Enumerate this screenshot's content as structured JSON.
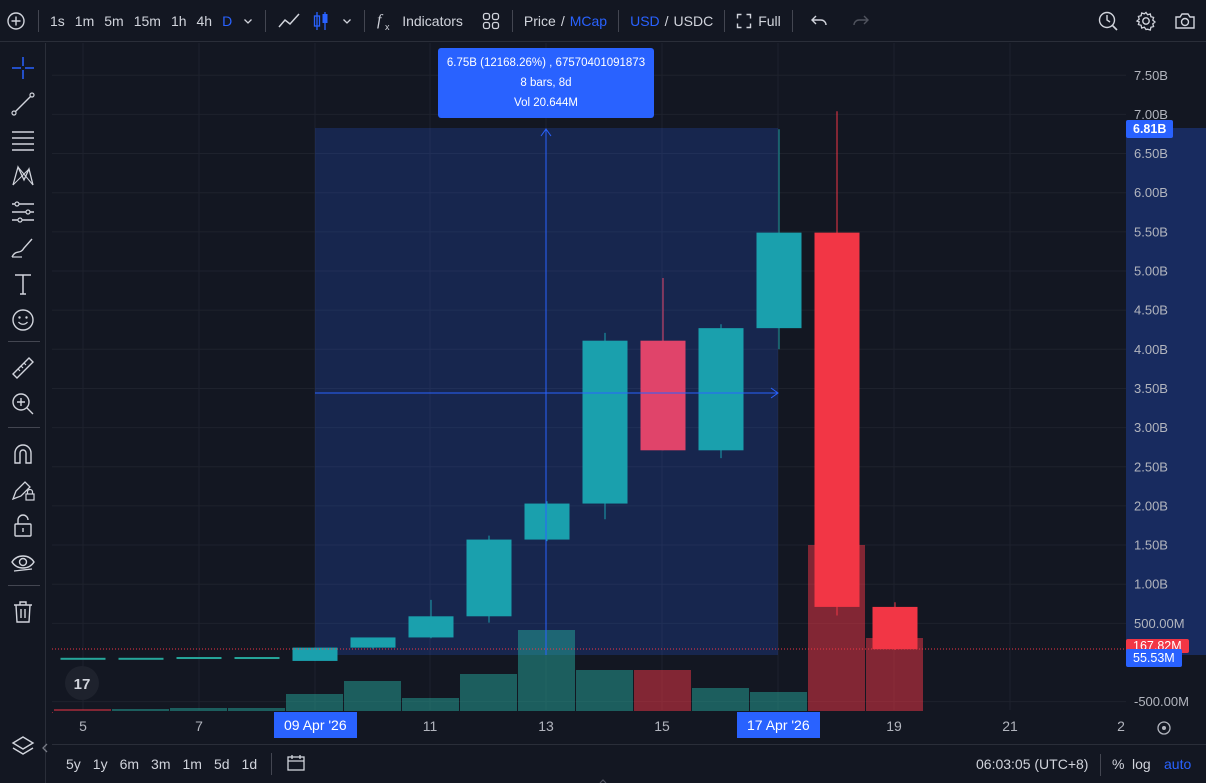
{
  "toolbar": {
    "intervals": [
      "1s",
      "1m",
      "5m",
      "15m",
      "1h",
      "4h",
      "D"
    ],
    "active_interval": "D",
    "indicators_label": "Indicators",
    "price_label": "Price",
    "price_sep": "/",
    "mcap_label": "MCap",
    "usd_label": "USD",
    "currency_sep": "/",
    "usdc_label": "USDC",
    "full_label": "Full"
  },
  "tooltip": {
    "line1": "6.75B (12168.26%) , 67570401091873",
    "line2": "8 bars, 8d",
    "line3": "Vol 20.644M"
  },
  "price_axis": {
    "ticks": [
      "7.50B",
      "7.00B",
      "6.50B",
      "6.00B",
      "5.50B",
      "5.00B",
      "4.50B",
      "4.00B",
      "3.50B",
      "3.00B",
      "2.50B",
      "2.00B",
      "1.50B",
      "1.00B",
      "500.00M",
      "-500.00M"
    ],
    "tag_top": "6.81B",
    "tag_red": "167.82M",
    "tag_blue": "55.53M"
  },
  "time_axis": {
    "ticks": [
      "5",
      "7",
      "11",
      "13",
      "15",
      "19",
      "21",
      "2"
    ],
    "start_tag": "09 Apr '26",
    "end_tag": "17 Apr '26"
  },
  "bottom": {
    "ranges": [
      "5y",
      "1y",
      "6m",
      "3m",
      "1m",
      "5d",
      "1d"
    ],
    "clock": "06:03:05 (UTC+8)",
    "percent_label": "%",
    "log_label": "log",
    "auto_label": "auto"
  },
  "colors": {
    "up": "#26a69a",
    "down": "#f23645",
    "accent": "#2962ff",
    "background": "#131722"
  },
  "chart_data": {
    "type": "candlestick",
    "x": [
      "4 Apr",
      "5 Apr",
      "6 Apr",
      "7 Apr",
      "8 Apr",
      "9 Apr",
      "10 Apr",
      "11 Apr",
      "12 Apr",
      "13 Apr",
      "14 Apr",
      "15 Apr",
      "16 Apr",
      "17 Apr",
      "18 Apr",
      "19 Apr"
    ],
    "open": [
      0.06,
      0.06,
      0.06,
      0.07,
      0.07,
      0.02,
      0.19,
      0.32,
      0.59,
      1.57,
      2.03,
      4.11,
      2.71,
      4.27,
      5.49,
      0.71
    ],
    "high": [
      0.06,
      0.06,
      0.06,
      0.07,
      0.07,
      0.19,
      0.32,
      0.8,
      1.62,
      2.06,
      4.21,
      4.91,
      4.32,
      6.81,
      7.04,
      0.77
    ],
    "low": [
      0.06,
      0.06,
      0.06,
      0.07,
      0.07,
      0.02,
      0.17,
      0.31,
      0.51,
      1.55,
      1.83,
      2.71,
      2.61,
      4.0,
      0.6,
      0.16
    ],
    "close": [
      0.06,
      0.06,
      0.06,
      0.07,
      0.07,
      0.19,
      0.32,
      0.59,
      1.57,
      2.03,
      4.11,
      2.71,
      4.27,
      5.49,
      0.71,
      0.17
    ],
    "volume_direction": [
      "down",
      "down",
      "up",
      "up",
      "up",
      "up",
      "up",
      "up",
      "up",
      "up",
      "up",
      "down",
      "up",
      "up",
      "down",
      "down"
    ],
    "y_unit": "B",
    "ylim": [
      -0.6,
      7.8
    ],
    "grid": true
  }
}
